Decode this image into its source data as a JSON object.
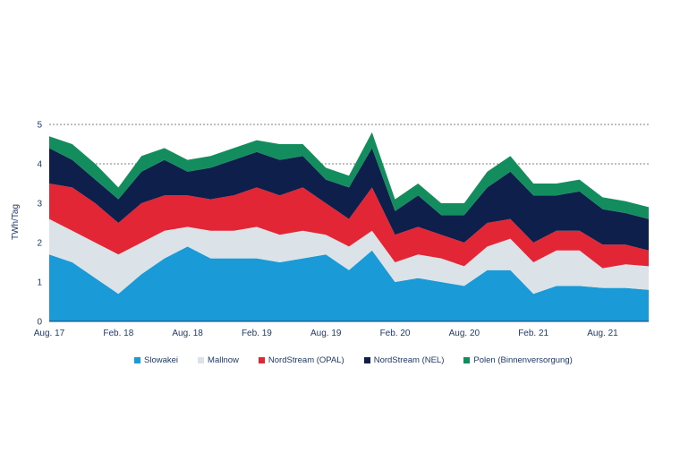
{
  "chart_data": {
    "type": "area",
    "stacked": true,
    "ylabel": "TWh/Tag",
    "ylim": [
      0,
      5
    ],
    "yticks": [
      "0",
      "1",
      "2",
      "3",
      "4",
      "5"
    ],
    "dashed_gridlines": [
      4,
      5
    ],
    "x_ticks": [
      "Aug. 17",
      "Feb. 18",
      "Aug. 18",
      "Feb. 19",
      "Aug. 19",
      "Feb. 20",
      "Aug. 20",
      "Feb. 21",
      "Aug. 21"
    ],
    "x": [
      "Aug. 17",
      "Okt. 17",
      "Dez. 17",
      "Feb. 18",
      "Apr. 18",
      "Jun. 18",
      "Aug. 18",
      "Okt. 18",
      "Dez. 18",
      "Feb. 19",
      "Apr. 19",
      "Jun. 19",
      "Aug. 19",
      "Okt. 19",
      "Dez. 19",
      "Feb. 20",
      "Apr. 20",
      "Jun. 20",
      "Aug. 20",
      "Okt. 20",
      "Dez. 20",
      "Feb. 21",
      "Apr. 21",
      "Jun. 21",
      "Aug. 21",
      "Okt. 21",
      "Dez. 21"
    ],
    "legend_position": "bottom",
    "series": [
      {
        "name": "Slowakei",
        "color": "#1a9ad6",
        "values": [
          1.7,
          1.5,
          1.1,
          0.7,
          1.2,
          1.6,
          1.9,
          1.6,
          1.6,
          1.6,
          1.5,
          1.6,
          1.7,
          1.3,
          1.8,
          1.0,
          1.1,
          1.0,
          0.9,
          1.3,
          1.3,
          0.7,
          0.9,
          0.9,
          0.85,
          0.85,
          0.8
        ]
      },
      {
        "name": "Mallnow",
        "color": "#dce3e8",
        "values": [
          0.9,
          0.8,
          0.9,
          1.0,
          0.8,
          0.7,
          0.5,
          0.7,
          0.7,
          0.8,
          0.7,
          0.7,
          0.5,
          0.6,
          0.5,
          0.5,
          0.6,
          0.6,
          0.5,
          0.6,
          0.8,
          0.8,
          0.9,
          0.9,
          0.5,
          0.6,
          0.6
        ]
      },
      {
        "name": "NordStream (OPAL)",
        "color": "#e32636",
        "values": [
          0.9,
          1.1,
          1.0,
          0.8,
          1.0,
          0.9,
          0.8,
          0.8,
          0.9,
          1.0,
          1.0,
          1.1,
          0.8,
          0.7,
          1.1,
          0.7,
          0.7,
          0.6,
          0.6,
          0.6,
          0.5,
          0.5,
          0.5,
          0.5,
          0.6,
          0.5,
          0.4
        ]
      },
      {
        "name": "NordStream (NEL)",
        "color": "#0f1f4b",
        "values": [
          0.9,
          0.7,
          0.6,
          0.6,
          0.8,
          0.9,
          0.6,
          0.8,
          0.9,
          0.9,
          0.9,
          0.8,
          0.6,
          0.8,
          1.0,
          0.6,
          0.8,
          0.5,
          0.7,
          0.9,
          1.2,
          1.2,
          0.9,
          1.0,
          0.9,
          0.8,
          0.8
        ]
      },
      {
        "name": "Polen (Binnenversorgung)",
        "color": "#138d5e",
        "values": [
          0.3,
          0.4,
          0.4,
          0.3,
          0.4,
          0.3,
          0.3,
          0.3,
          0.3,
          0.3,
          0.4,
          0.3,
          0.3,
          0.3,
          0.4,
          0.3,
          0.3,
          0.3,
          0.3,
          0.4,
          0.4,
          0.3,
          0.3,
          0.3,
          0.3,
          0.3,
          0.3
        ]
      }
    ]
  }
}
